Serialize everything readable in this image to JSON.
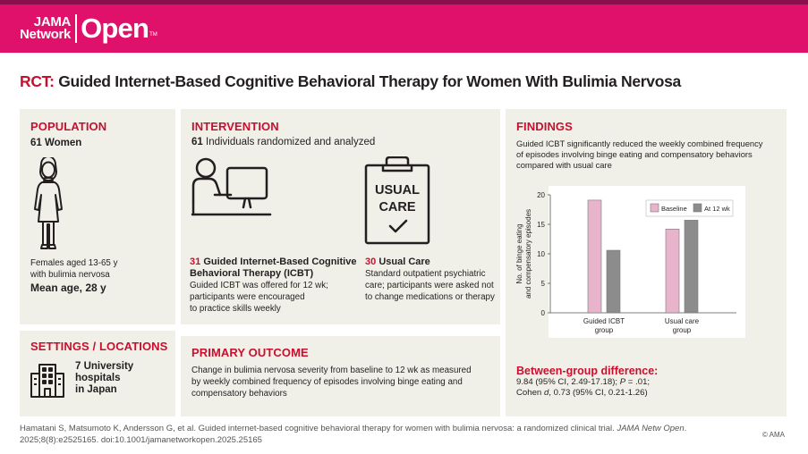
{
  "header": {
    "brand_small_line1": "JAMA",
    "brand_small_line2": "Network",
    "brand_big": "Open",
    "brand_tm": "TM",
    "bg_color": "#e0116b"
  },
  "title": {
    "prefix": "RCT:",
    "text": "Guided Internet-Based Cognitive Behavioral Therapy for Women With Bulimia Nervosa"
  },
  "population": {
    "heading": "POPULATION",
    "count": "61 Women",
    "icon": "woman-icon",
    "desc_line1": "Females aged 13-65 y",
    "desc_line2": "with bulimia nervosa",
    "mean_age": "Mean age, 28 y"
  },
  "settings": {
    "heading": "SETTINGS / LOCATIONS",
    "icon": "building-icon",
    "line1": "7 University",
    "line2": "hospitals",
    "line3": "in Japan"
  },
  "intervention": {
    "heading": "INTERVENTION",
    "count": "61",
    "count_text": "Individuals randomized and analyzed",
    "icbt": {
      "icon": "computer-user-icon",
      "n": "31",
      "title_line1": "Guided Internet-Based Cognitive",
      "title_line2": "Behavioral Therapy (ICBT)",
      "desc_line1": "Guided ICBT was offered for 12 wk;",
      "desc_line2": "participants were encouraged",
      "desc_line3": "to practice skills weekly"
    },
    "usual": {
      "icon": "clipboard-check-icon",
      "icon_text_line1": "USUAL",
      "icon_text_line2": "CARE",
      "n": "30",
      "title": "Usual Care",
      "desc_line1": "Standard outpatient psychiatric",
      "desc_line2": "care; participants were asked not",
      "desc_line3": "to change medications or therapy"
    }
  },
  "primary_outcome": {
    "heading": "PRIMARY OUTCOME",
    "line1": "Change in bulimia nervosa severity from baseline to 12 wk as measured",
    "line2": "by weekly combined frequency of episodes involving binge eating and",
    "line3": "compensatory behaviors"
  },
  "findings": {
    "heading": "FINDINGS",
    "line1": "Guided ICBT significantly reduced the weekly combined frequency",
    "line2": "of episodes involving binge eating and compensatory behaviors",
    "line3": "compared with usual care",
    "diff_heading": "Between-group difference:",
    "diff_line1_a": "9.84 (95% CI, 2.49-17.18); ",
    "diff_line1_p": "P",
    "diff_line1_b": " = .01;",
    "diff_line2_a": "Cohen ",
    "diff_line2_d": "d",
    "diff_line2_b": ", 0.73 (95% CI, 0.21-1.26)"
  },
  "chart_data": {
    "type": "bar",
    "categories": [
      "Guided ICBT group",
      "Usual care group"
    ],
    "category_lines": [
      [
        "Guided ICBT",
        "group"
      ],
      [
        "Usual care",
        "group"
      ]
    ],
    "series": [
      {
        "name": "Baseline",
        "values": [
          19.1,
          14.2
        ],
        "color": "#e8b4cc"
      },
      {
        "name": "At 12 wk",
        "values": [
          10.6,
          15.7
        ],
        "color": "#8c8c8c"
      }
    ],
    "ylabel_line1": "No. of binge eating",
    "ylabel_line2": "and compensatory episodes",
    "ylim": [
      0,
      20
    ],
    "yticks": [
      0,
      5,
      10,
      15,
      20
    ],
    "legend_position": "top-right",
    "grid": false
  },
  "footer": {
    "citation_a": "Hamatani S, Matsumoto K, Andersson G, et al. Guided internet-based cognitive behavioral therapy for women with bulimia nervosa: a randomized clinical trial. ",
    "citation_journal": "JAMA Netw Open",
    "citation_b": ".",
    "citation_line2": "2025;8(8):e2525165. doi:10.1001/jamanetworkopen.2025.25165",
    "copyright": "© AMA"
  }
}
